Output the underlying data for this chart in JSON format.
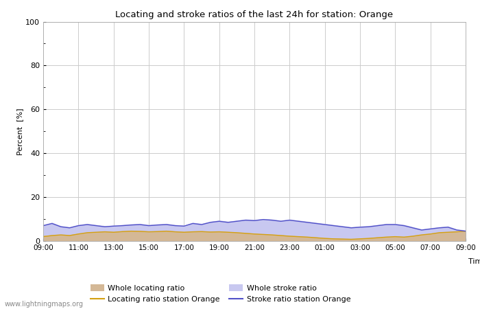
{
  "title": "Locating and stroke ratios of the last 24h for station: Orange",
  "xlabel": "Time",
  "ylabel": "Percent  [%]",
  "watermark": "www.lightningmaps.org",
  "xlim": [
    0,
    48
  ],
  "ylim": [
    0,
    100
  ],
  "yticks": [
    0,
    20,
    40,
    60,
    80,
    100
  ],
  "ytick_minor": [
    10,
    30,
    50,
    70,
    90
  ],
  "xtick_labels": [
    "09:00",
    "11:00",
    "13:00",
    "15:00",
    "17:00",
    "19:00",
    "21:00",
    "23:00",
    "01:00",
    "03:00",
    "05:00",
    "07:00",
    "09:00"
  ],
  "xtick_positions": [
    0,
    4,
    8,
    12,
    16,
    20,
    24,
    28,
    32,
    36,
    40,
    44,
    48
  ],
  "color_whole_locating": "#d4b896",
  "color_whole_stroke": "#c8c8f0",
  "color_locating_station": "#d4a010",
  "color_stroke_station": "#5050c8",
  "background_color": "#ffffff",
  "plot_bg_color": "#ffffff",
  "grid_color": "#cccccc",
  "whole_locating": [
    2.5,
    2.8,
    3.0,
    2.9,
    3.5,
    4.0,
    4.2,
    4.5,
    4.3,
    4.6,
    4.8,
    4.7,
    4.5,
    4.6,
    4.8,
    4.5,
    4.3,
    4.5,
    4.6,
    4.4,
    4.5,
    4.3,
    4.0,
    3.8,
    3.5,
    3.2,
    3.0,
    2.8,
    2.5,
    2.3,
    2.0,
    1.8,
    1.5,
    1.3,
    1.2,
    1.0,
    1.2,
    1.5,
    1.8,
    2.0,
    2.2,
    2.0,
    2.5,
    3.0,
    3.5,
    4.0,
    4.2,
    4.5,
    4.8
  ],
  "whole_stroke": [
    7.5,
    8.5,
    7.0,
    6.5,
    7.5,
    8.0,
    7.5,
    7.0,
    7.2,
    7.5,
    7.8,
    8.0,
    7.5,
    7.8,
    8.0,
    7.5,
    7.2,
    8.5,
    8.0,
    9.0,
    9.5,
    9.0,
    9.5,
    10.0,
    9.8,
    10.2,
    10.0,
    9.5,
    10.0,
    9.5,
    9.0,
    8.5,
    8.0,
    7.5,
    7.0,
    6.5,
    6.8,
    7.0,
    7.5,
    8.0,
    8.0,
    7.5,
    6.5,
    5.5,
    6.0,
    6.5,
    6.8,
    5.5,
    5.0
  ],
  "locating_station": [
    2.0,
    2.5,
    2.8,
    2.5,
    3.2,
    3.8,
    4.0,
    4.2,
    4.0,
    4.3,
    4.5,
    4.4,
    4.2,
    4.3,
    4.5,
    4.2,
    4.0,
    4.2,
    4.3,
    4.1,
    4.2,
    4.0,
    3.8,
    3.5,
    3.2,
    3.0,
    2.8,
    2.5,
    2.2,
    2.0,
    1.8,
    1.5,
    1.2,
    1.0,
    0.9,
    0.8,
    1.0,
    1.2,
    1.5,
    1.8,
    2.0,
    1.8,
    2.2,
    2.8,
    3.2,
    3.8,
    4.0,
    4.2,
    4.5
  ],
  "stroke_station": [
    7.0,
    8.0,
    6.5,
    6.0,
    7.0,
    7.5,
    7.0,
    6.5,
    6.8,
    7.0,
    7.3,
    7.5,
    7.0,
    7.3,
    7.5,
    7.0,
    6.8,
    8.0,
    7.5,
    8.5,
    9.0,
    8.5,
    9.0,
    9.5,
    9.3,
    9.8,
    9.5,
    9.0,
    9.5,
    9.0,
    8.5,
    8.0,
    7.5,
    7.0,
    6.5,
    6.0,
    6.3,
    6.5,
    7.0,
    7.5,
    7.5,
    7.0,
    6.0,
    5.0,
    5.5,
    6.0,
    6.3,
    5.0,
    4.5
  ]
}
